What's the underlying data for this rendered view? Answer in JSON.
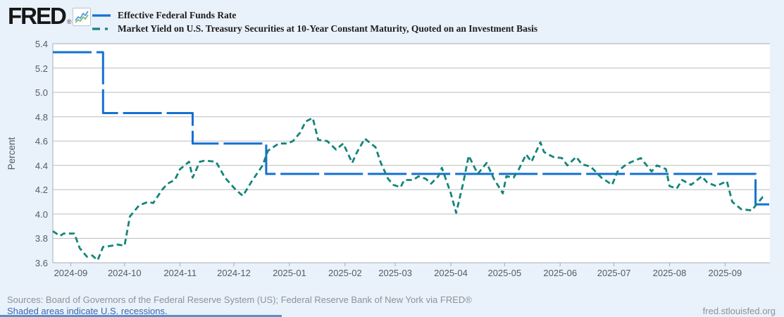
{
  "header": {
    "logo_text": "FRED",
    "logo_registered": "®",
    "legend": [
      {
        "label": "Effective Federal Funds Rate",
        "color": "#1471d2",
        "style": "solid"
      },
      {
        "label": "Market Yield on U.S. Treasury Securities at 10-Year Constant Maturity, Quoted on an Investment Basis",
        "color": "#13857a",
        "style": "dashed"
      }
    ]
  },
  "chart_data": {
    "type": "line",
    "ylabel": "Percent",
    "ylim": [
      3.6,
      5.4
    ],
    "grid": true,
    "legend_position": "top",
    "x_domain": [
      "2024-08-22",
      "2025-09-26"
    ],
    "y_ticks": [
      {
        "v": 5.4,
        "label": "5.4"
      },
      {
        "v": 5.2,
        "label": "5.2"
      },
      {
        "v": 5.0,
        "label": "5.0"
      },
      {
        "v": 4.8,
        "label": "4.8"
      },
      {
        "v": 4.6,
        "label": "4.6"
      },
      {
        "v": 4.4,
        "label": "4.4"
      },
      {
        "v": 4.2,
        "label": "4.2"
      },
      {
        "v": 4.0,
        "label": "4.0"
      },
      {
        "v": 3.8,
        "label": "3.8"
      },
      {
        "v": 3.6,
        "label": "3.6"
      }
    ],
    "x_ticks": [
      {
        "date": "2024-09-01",
        "label": "2024-09"
      },
      {
        "date": "2024-10-01",
        "label": "2024-10"
      },
      {
        "date": "2024-11-01",
        "label": "2024-11"
      },
      {
        "date": "2024-12-01",
        "label": "2024-12"
      },
      {
        "date": "2025-01-01",
        "label": "2025-01"
      },
      {
        "date": "2025-02-01",
        "label": "2025-02"
      },
      {
        "date": "2025-03-01",
        "label": "2025-03"
      },
      {
        "date": "2025-04-01",
        "label": "2025-04"
      },
      {
        "date": "2025-05-01",
        "label": "2025-05"
      },
      {
        "date": "2025-06-01",
        "label": "2025-06"
      },
      {
        "date": "2025-07-01",
        "label": "2025-07"
      },
      {
        "date": "2025-08-01",
        "label": "2025-08"
      },
      {
        "date": "2025-09-01",
        "label": "2025-09"
      }
    ],
    "series": [
      {
        "name": "Effective Federal Funds Rate",
        "color": "#1471d2",
        "line_style": "long-dash",
        "step": true,
        "points": [
          [
            "2024-08-22",
            5.33
          ],
          [
            "2024-09-19",
            4.83
          ],
          [
            "2024-11-08",
            4.58
          ],
          [
            "2024-12-19",
            4.33
          ],
          [
            "2025-09-18",
            4.08
          ],
          [
            "2025-09-26",
            4.08
          ]
        ]
      },
      {
        "name": "Market Yield on U.S. Treasury Securities at 10-Year Constant Maturity, Quoted on an Investment Basis",
        "color": "#13857a",
        "line_style": "short-dash",
        "step": false,
        "points": [
          [
            "2024-08-22",
            3.86
          ],
          [
            "2024-08-26",
            3.82
          ],
          [
            "2024-08-28",
            3.84
          ],
          [
            "2024-09-03",
            3.84
          ],
          [
            "2024-09-06",
            3.72
          ],
          [
            "2024-09-10",
            3.65
          ],
          [
            "2024-09-13",
            3.66
          ],
          [
            "2024-09-16",
            3.62
          ],
          [
            "2024-09-19",
            3.73
          ],
          [
            "2024-09-24",
            3.74
          ],
          [
            "2024-09-27",
            3.75
          ],
          [
            "2024-10-01",
            3.74
          ],
          [
            "2024-10-04",
            3.98
          ],
          [
            "2024-10-09",
            4.07
          ],
          [
            "2024-10-14",
            4.1
          ],
          [
            "2024-10-17",
            4.09
          ],
          [
            "2024-10-22",
            4.2
          ],
          [
            "2024-10-25",
            4.25
          ],
          [
            "2024-10-29",
            4.28
          ],
          [
            "2024-11-01",
            4.37
          ],
          [
            "2024-11-06",
            4.43
          ],
          [
            "2024-11-08",
            4.3
          ],
          [
            "2024-11-12",
            4.43
          ],
          [
            "2024-11-15",
            4.44
          ],
          [
            "2024-11-21",
            4.43
          ],
          [
            "2024-11-26",
            4.3
          ],
          [
            "2024-12-02",
            4.2
          ],
          [
            "2024-12-06",
            4.15
          ],
          [
            "2024-12-11",
            4.27
          ],
          [
            "2024-12-17",
            4.4
          ],
          [
            "2024-12-20",
            4.52
          ],
          [
            "2024-12-26",
            4.58
          ],
          [
            "2024-12-31",
            4.58
          ],
          [
            "2025-01-03",
            4.6
          ],
          [
            "2025-01-07",
            4.67
          ],
          [
            "2025-01-10",
            4.76
          ],
          [
            "2025-01-14",
            4.79
          ],
          [
            "2025-01-17",
            4.61
          ],
          [
            "2025-01-22",
            4.6
          ],
          [
            "2025-01-27",
            4.53
          ],
          [
            "2025-01-31",
            4.58
          ],
          [
            "2025-02-05",
            4.42
          ],
          [
            "2025-02-07",
            4.49
          ],
          [
            "2025-02-12",
            4.62
          ],
          [
            "2025-02-18",
            4.55
          ],
          [
            "2025-02-21",
            4.42
          ],
          [
            "2025-02-25",
            4.29
          ],
          [
            "2025-02-28",
            4.24
          ],
          [
            "2025-03-04",
            4.22
          ],
          [
            "2025-03-06",
            4.28
          ],
          [
            "2025-03-11",
            4.28
          ],
          [
            "2025-03-14",
            4.31
          ],
          [
            "2025-03-18",
            4.29
          ],
          [
            "2025-03-21",
            4.25
          ],
          [
            "2025-03-25",
            4.31
          ],
          [
            "2025-03-27",
            4.38
          ],
          [
            "2025-04-01",
            4.17
          ],
          [
            "2025-04-04",
            4.01
          ],
          [
            "2025-04-08",
            4.26
          ],
          [
            "2025-04-11",
            4.48
          ],
          [
            "2025-04-16",
            4.33
          ],
          [
            "2025-04-21",
            4.42
          ],
          [
            "2025-04-25",
            4.29
          ],
          [
            "2025-04-30",
            4.17
          ],
          [
            "2025-05-02",
            4.31
          ],
          [
            "2025-05-06",
            4.3
          ],
          [
            "2025-05-09",
            4.37
          ],
          [
            "2025-05-13",
            4.49
          ],
          [
            "2025-05-16",
            4.43
          ],
          [
            "2025-05-21",
            4.59
          ],
          [
            "2025-05-23",
            4.51
          ],
          [
            "2025-05-28",
            4.47
          ],
          [
            "2025-06-02",
            4.46
          ],
          [
            "2025-06-05",
            4.4
          ],
          [
            "2025-06-10",
            4.47
          ],
          [
            "2025-06-13",
            4.41
          ],
          [
            "2025-06-18",
            4.39
          ],
          [
            "2025-06-24",
            4.3
          ],
          [
            "2025-06-30",
            4.24
          ],
          [
            "2025-07-03",
            4.35
          ],
          [
            "2025-07-08",
            4.41
          ],
          [
            "2025-07-11",
            4.43
          ],
          [
            "2025-07-16",
            4.46
          ],
          [
            "2025-07-22",
            4.35
          ],
          [
            "2025-07-25",
            4.4
          ],
          [
            "2025-07-30",
            4.37
          ],
          [
            "2025-08-01",
            4.23
          ],
          [
            "2025-08-05",
            4.21
          ],
          [
            "2025-08-08",
            4.28
          ],
          [
            "2025-08-13",
            4.24
          ],
          [
            "2025-08-19",
            4.31
          ],
          [
            "2025-08-22",
            4.26
          ],
          [
            "2025-08-27",
            4.23
          ],
          [
            "2025-09-02",
            4.27
          ],
          [
            "2025-09-05",
            4.1
          ],
          [
            "2025-09-10",
            4.04
          ],
          [
            "2025-09-16",
            4.03
          ],
          [
            "2025-09-18",
            4.07
          ],
          [
            "2025-09-22",
            4.14
          ],
          [
            "2025-09-24",
            4.14
          ]
        ]
      }
    ]
  },
  "footer": {
    "sources": "Sources: Board of Governors of the Federal Reserve System (US); Federal Reserve Bank of New York via FRED®",
    "recession_note": "Shaded areas indicate U.S. recessions.",
    "site": "fred.stlouisfed.org"
  }
}
